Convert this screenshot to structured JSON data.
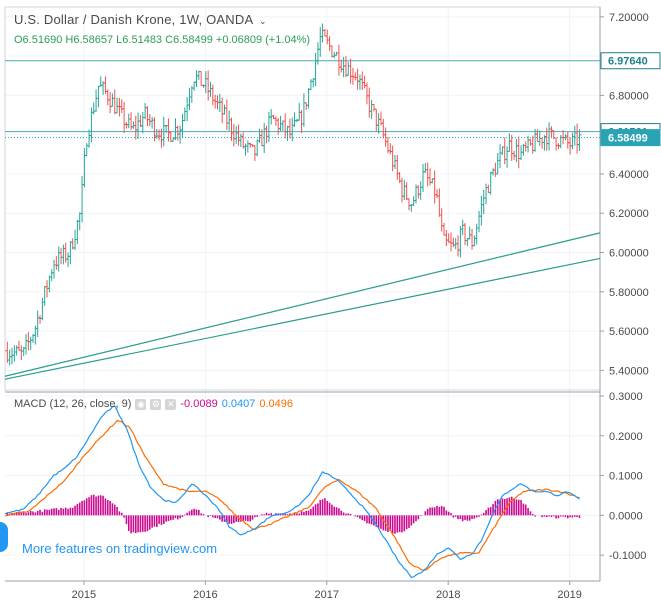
{
  "header": {
    "title": "U.S. Dollar / Danish Krone, 1W, OANDA",
    "open": "O6.51690",
    "high": "H6.58657",
    "low": "L6.51483",
    "close": "C6.58499",
    "change": "+0.06809 (+1.04%)"
  },
  "macd_legend": {
    "label": "MACD (12, 26, close, 9)",
    "v1": "-0.0089",
    "v2": "0.0407",
    "v3": "0.0496"
  },
  "promo": "More features on tradingview.com",
  "colors": {
    "up": "#26a69a",
    "down": "#ef5350",
    "teal_line": "#2a9d8f",
    "macd": "#2196f3",
    "signal": "#ff6d00",
    "hist": "#cc0a8e"
  },
  "chart_data": {
    "type": "ohlc",
    "x_ticks": [
      "2015",
      "2016",
      "2017",
      "2018",
      "2019"
    ],
    "price_axis": {
      "ylim": [
        5.3,
        7.25
      ],
      "ticks": [
        "7.20000",
        "7.00000",
        "6.80000",
        "6.60000",
        "6.40000",
        "6.20000",
        "6.00000",
        "5.80000",
        "5.60000",
        "5.40000"
      ],
      "labels": {
        "resistance": "6.97640",
        "level": "6.61561",
        "last": "6.58499"
      }
    },
    "macd_axis": {
      "ylim": [
        -0.165,
        0.31
      ],
      "ticks": [
        "0.3000",
        "0.2000",
        "0.1000",
        "0.0000",
        "-0.1000"
      ]
    },
    "close_anchors": [
      [
        2014.35,
        5.5
      ],
      [
        2014.5,
        5.48
      ],
      [
        2014.6,
        5.62
      ],
      [
        2014.75,
        5.95
      ],
      [
        2014.88,
        6.0
      ],
      [
        2014.97,
        6.2
      ],
      [
        2015.02,
        6.58
      ],
      [
        2015.12,
        6.85
      ],
      [
        2015.2,
        6.8
      ],
      [
        2015.3,
        6.7
      ],
      [
        2015.4,
        6.62
      ],
      [
        2015.5,
        6.7
      ],
      [
        2015.6,
        6.62
      ],
      [
        2015.7,
        6.6
      ],
      [
        2015.8,
        6.65
      ],
      [
        2015.9,
        6.9
      ],
      [
        2016.0,
        6.85
      ],
      [
        2016.15,
        6.7
      ],
      [
        2016.3,
        6.55
      ],
      [
        2016.4,
        6.5
      ],
      [
        2016.55,
        6.68
      ],
      [
        2016.7,
        6.6
      ],
      [
        2016.8,
        6.7
      ],
      [
        2016.88,
        6.9
      ],
      [
        2016.95,
        7.1
      ],
      [
        2017.02,
        7.05
      ],
      [
        2017.15,
        6.95
      ],
      [
        2017.25,
        6.9
      ],
      [
        2017.35,
        6.75
      ],
      [
        2017.45,
        6.62
      ],
      [
        2017.55,
        6.45
      ],
      [
        2017.62,
        6.32
      ],
      [
        2017.7,
        6.25
      ],
      [
        2017.8,
        6.4
      ],
      [
        2017.9,
        6.3
      ],
      [
        2017.96,
        6.05
      ],
      [
        2018.05,
        6.02
      ],
      [
        2018.12,
        6.1
      ],
      [
        2018.2,
        6.05
      ],
      [
        2018.3,
        6.3
      ],
      [
        2018.4,
        6.45
      ],
      [
        2018.5,
        6.55
      ],
      [
        2018.6,
        6.5
      ],
      [
        2018.7,
        6.55
      ],
      [
        2018.8,
        6.6
      ],
      [
        2018.9,
        6.58
      ],
      [
        2019.0,
        6.55
      ],
      [
        2019.08,
        6.58
      ]
    ],
    "macd_anchors": [
      [
        2014.35,
        0.005
      ],
      [
        2014.5,
        0.015
      ],
      [
        2014.62,
        0.05
      ],
      [
        2014.75,
        0.1
      ],
      [
        2014.85,
        0.12
      ],
      [
        2014.95,
        0.15
      ],
      [
        2015.05,
        0.2
      ],
      [
        2015.15,
        0.25
      ],
      [
        2015.25,
        0.275
      ],
      [
        2015.35,
        0.22
      ],
      [
        2015.45,
        0.13
      ],
      [
        2015.55,
        0.07
      ],
      [
        2015.65,
        0.04
      ],
      [
        2015.75,
        0.03
      ],
      [
        2015.9,
        0.08
      ],
      [
        2016.0,
        0.05
      ],
      [
        2016.1,
        0.02
      ],
      [
        2016.2,
        -0.03
      ],
      [
        2016.3,
        -0.05
      ],
      [
        2016.42,
        -0.03
      ],
      [
        2016.55,
        0.0
      ],
      [
        2016.65,
        0.005
      ],
      [
        2016.75,
        0.02
      ],
      [
        2016.85,
        0.05
      ],
      [
        2016.97,
        0.11
      ],
      [
        2017.08,
        0.09
      ],
      [
        2017.18,
        0.06
      ],
      [
        2017.3,
        0.02
      ],
      [
        2017.4,
        -0.02
      ],
      [
        2017.5,
        -0.07
      ],
      [
        2017.6,
        -0.12
      ],
      [
        2017.7,
        -0.155
      ],
      [
        2017.8,
        -0.14
      ],
      [
        2017.9,
        -0.1
      ],
      [
        2018.0,
        -0.08
      ],
      [
        2018.1,
        -0.11
      ],
      [
        2018.2,
        -0.095
      ],
      [
        2018.28,
        -0.06
      ],
      [
        2018.36,
        0.0
      ],
      [
        2018.45,
        0.05
      ],
      [
        2018.52,
        0.065
      ],
      [
        2018.6,
        0.08
      ],
      [
        2018.7,
        0.06
      ],
      [
        2018.8,
        0.06
      ],
      [
        2018.9,
        0.05
      ],
      [
        2018.98,
        0.06
      ],
      [
        2019.08,
        0.04
      ]
    ],
    "signal_anchors": [
      [
        2014.35,
        0.0
      ],
      [
        2014.55,
        0.01
      ],
      [
        2014.7,
        0.05
      ],
      [
        2014.85,
        0.09
      ],
      [
        2015.0,
        0.15
      ],
      [
        2015.15,
        0.2
      ],
      [
        2015.28,
        0.24
      ],
      [
        2015.38,
        0.22
      ],
      [
        2015.5,
        0.15
      ],
      [
        2015.65,
        0.08
      ],
      [
        2015.85,
        0.06
      ],
      [
        2016.0,
        0.06
      ],
      [
        2016.12,
        0.04
      ],
      [
        2016.25,
        0.0
      ],
      [
        2016.4,
        -0.035
      ],
      [
        2016.55,
        -0.02
      ],
      [
        2016.7,
        0.0
      ],
      [
        2016.85,
        0.02
      ],
      [
        2016.98,
        0.07
      ],
      [
        2017.1,
        0.09
      ],
      [
        2017.25,
        0.06
      ],
      [
        2017.4,
        0.02
      ],
      [
        2017.55,
        -0.05
      ],
      [
        2017.68,
        -0.12
      ],
      [
        2017.8,
        -0.14
      ],
      [
        2017.95,
        -0.105
      ],
      [
        2018.1,
        -0.095
      ],
      [
        2018.25,
        -0.095
      ],
      [
        2018.38,
        -0.03
      ],
      [
        2018.5,
        0.03
      ],
      [
        2018.62,
        0.06
      ],
      [
        2018.8,
        0.065
      ],
      [
        2018.92,
        0.06
      ],
      [
        2019.08,
        0.045
      ]
    ],
    "hist_anchors": [
      [
        2014.35,
        0.005
      ],
      [
        2014.6,
        0.01
      ],
      [
        2014.75,
        0.015
      ],
      [
        2014.9,
        0.02
      ],
      [
        2015.0,
        0.04
      ],
      [
        2015.07,
        0.05
      ],
      [
        2015.15,
        0.05
      ],
      [
        2015.25,
        0.03
      ],
      [
        2015.32,
        0.0
      ],
      [
        2015.38,
        -0.045
      ],
      [
        2015.5,
        -0.04
      ],
      [
        2015.65,
        -0.02
      ],
      [
        2015.8,
        -0.005
      ],
      [
        2015.9,
        0.02
      ],
      [
        2016.0,
        0.0
      ],
      [
        2016.2,
        -0.02
      ],
      [
        2016.35,
        -0.015
      ],
      [
        2016.5,
        0.005
      ],
      [
        2016.7,
        0.005
      ],
      [
        2016.85,
        0.01
      ],
      [
        2016.98,
        0.045
      ],
      [
        2017.08,
        0.02
      ],
      [
        2017.2,
        0.0
      ],
      [
        2017.35,
        -0.02
      ],
      [
        2017.48,
        -0.04
      ],
      [
        2017.6,
        -0.045
      ],
      [
        2017.72,
        -0.02
      ],
      [
        2017.85,
        0.02
      ],
      [
        2017.95,
        0.025
      ],
      [
        2018.05,
        -0.005
      ],
      [
        2018.15,
        -0.015
      ],
      [
        2018.28,
        0.0
      ],
      [
        2018.4,
        0.04
      ],
      [
        2018.52,
        0.045
      ],
      [
        2018.6,
        0.04
      ],
      [
        2018.7,
        0.0
      ],
      [
        2018.85,
        -0.005
      ],
      [
        2019.08,
        -0.005
      ]
    ],
    "trendlines": [
      {
        "from": [
          2014.35,
          5.37
        ],
        "to": [
          2019.25,
          6.1
        ]
      },
      {
        "from": [
          2014.35,
          5.355
        ],
        "to": [
          2019.25,
          5.97
        ]
      }
    ],
    "hlines": [
      6.9764,
      6.61561
    ]
  }
}
